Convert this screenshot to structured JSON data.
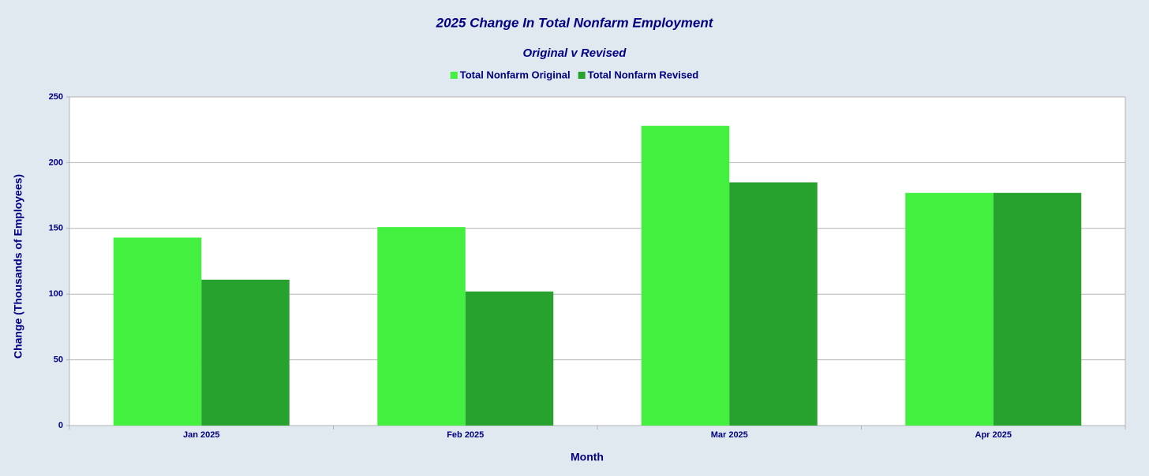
{
  "chart_data": {
    "type": "bar",
    "title": "2025 Change In Total Nonfarm Employment",
    "subtitle": "Original v Revised",
    "x_label": "Month",
    "y_label": "Change (Thousands of Employees)",
    "categories": [
      "Jan 2025",
      "Feb 2025",
      "Mar 2025",
      "Apr 2025"
    ],
    "series": [
      {
        "name": "Total Nonfarm Original",
        "color": "#43f03f",
        "values": [
          143,
          151,
          228,
          177
        ]
      },
      {
        "name": "Total Nonfarm Revised",
        "color": "#28a22e",
        "values": [
          111,
          102,
          185,
          177
        ]
      }
    ],
    "ylim": [
      0,
      250
    ],
    "yticks": [
      0,
      50,
      100,
      150,
      200,
      250
    ],
    "grid": true,
    "legend": "top"
  }
}
